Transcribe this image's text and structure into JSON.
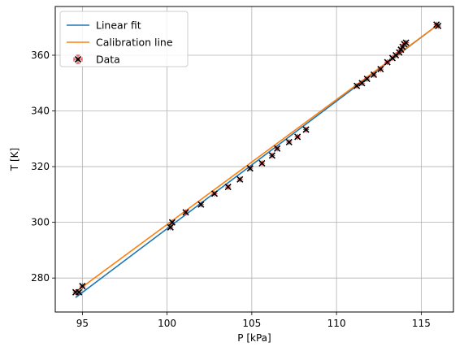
{
  "chart_data": {
    "type": "scatter",
    "xlabel": "P [kPa]",
    "ylabel": "T [K]",
    "xlim": [
      93.4,
      116.9
    ],
    "ylim": [
      267.8,
      377.5
    ],
    "xticks": [
      95,
      100,
      105,
      110,
      115
    ],
    "yticks": [
      280,
      300,
      320,
      340,
      360
    ],
    "grid": true,
    "legend_position": "top-left",
    "lines": [
      {
        "name": "Linear fit",
        "color": "#1f77b4",
        "x": [
          94.6,
          116.0
        ],
        "y": [
          273.0,
          371.0
        ]
      },
      {
        "name": "Calibration line",
        "color": "#ff7f0e",
        "x": [
          94.6,
          116.0
        ],
        "y": [
          275.0,
          371.0
        ]
      }
    ],
    "series": [
      {
        "name": "Data",
        "color": "#000000",
        "errorbar_color": "#d62728",
        "x": [
          94.6,
          94.8,
          95.0,
          100.2,
          100.3,
          101.1,
          102.0,
          102.8,
          103.6,
          104.3,
          104.9,
          105.6,
          106.2,
          106.5,
          107.2,
          107.7,
          108.2,
          111.2,
          111.5,
          111.8,
          112.2,
          112.6,
          113.0,
          113.3,
          113.5,
          113.7,
          113.8,
          113.9,
          114.0,
          114.1,
          115.9,
          116.0
        ],
        "y": [
          274.9,
          274.9,
          277.1,
          298.2,
          300.0,
          303.6,
          306.4,
          310.3,
          312.7,
          315.4,
          319.4,
          321.2,
          324.0,
          326.5,
          328.8,
          330.7,
          333.3,
          349.0,
          350.0,
          351.5,
          353.0,
          355.0,
          357.5,
          359.0,
          360.0,
          361.0,
          362.0,
          363.0,
          364.0,
          364.5,
          371.0,
          370.5
        ]
      }
    ]
  }
}
